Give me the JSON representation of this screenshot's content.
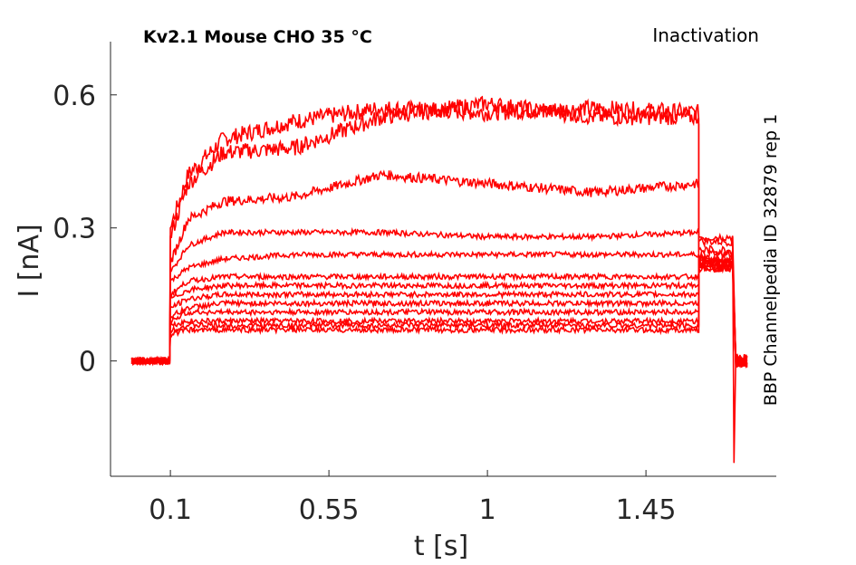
{
  "chart_data": {
    "type": "line",
    "title_left": "Kv2.1  Mouse  CHO  35 °C",
    "title_right": "Inactivation",
    "side_label": "BBP Channelpedia ID 32879 rep 1",
    "xlabel": "t [s]",
    "ylabel": "I [nA]",
    "xlim": [
      -0.07,
      1.82
    ],
    "ylim": [
      -0.26,
      0.72
    ],
    "xticks": [
      0.1,
      0.55,
      1,
      1.45
    ],
    "xtick_labels": [
      "0.1",
      "0.55",
      "1",
      "1.45"
    ],
    "yticks": [
      0,
      0.3,
      0.6
    ],
    "ytick_labels": [
      "0",
      "0.3",
      "0.6"
    ],
    "line_color": "#ff0000",
    "step_on_s": 0.1,
    "step_off_s": 1.6,
    "end_s": 1.74,
    "series": [
      {
        "name": "sweep 1",
        "x": [
          0.1,
          0.15,
          0.25,
          0.45,
          0.7,
          1.0,
          1.3,
          1.6
        ],
        "y": [
          0.3,
          0.42,
          0.5,
          0.54,
          0.57,
          0.56,
          0.57,
          0.56
        ]
      },
      {
        "name": "sweep 2",
        "x": [
          0.1,
          0.15,
          0.25,
          0.45,
          0.7,
          1.0,
          1.3,
          1.6
        ],
        "y": [
          0.28,
          0.4,
          0.47,
          0.48,
          0.55,
          0.58,
          0.55,
          0.55
        ]
      },
      {
        "name": "sweep 3",
        "x": [
          0.1,
          0.15,
          0.25,
          0.45,
          0.7,
          1.0,
          1.3,
          1.6
        ],
        "y": [
          0.22,
          0.32,
          0.36,
          0.37,
          0.42,
          0.4,
          0.38,
          0.4
        ]
      },
      {
        "name": "sweep 4",
        "x": [
          0.1,
          0.15,
          0.25,
          0.45,
          0.7,
          1.0,
          1.3,
          1.6
        ],
        "y": [
          0.2,
          0.26,
          0.29,
          0.29,
          0.29,
          0.28,
          0.28,
          0.29
        ]
      },
      {
        "name": "sweep 5",
        "x": [
          0.1,
          0.15,
          0.25,
          0.45,
          0.7,
          1.0,
          1.3,
          1.6
        ],
        "y": [
          0.18,
          0.21,
          0.23,
          0.24,
          0.24,
          0.24,
          0.24,
          0.24
        ]
      },
      {
        "name": "sweep 6",
        "x": [
          0.1,
          0.15,
          0.25,
          0.45,
          0.7,
          1.0,
          1.3,
          1.6
        ],
        "y": [
          0.15,
          0.18,
          0.19,
          0.19,
          0.19,
          0.19,
          0.19,
          0.19
        ]
      },
      {
        "name": "sweep 7",
        "x": [
          0.1,
          0.15,
          0.25,
          0.45,
          0.7,
          1.0,
          1.3,
          1.6
        ],
        "y": [
          0.14,
          0.16,
          0.17,
          0.17,
          0.17,
          0.17,
          0.17,
          0.17
        ]
      },
      {
        "name": "sweep 8",
        "x": [
          0.1,
          0.15,
          0.25,
          0.45,
          0.7,
          1.0,
          1.3,
          1.6
        ],
        "y": [
          0.12,
          0.14,
          0.15,
          0.15,
          0.15,
          0.15,
          0.15,
          0.15
        ]
      },
      {
        "name": "sweep 9",
        "x": [
          0.1,
          0.15,
          0.25,
          0.45,
          0.7,
          1.0,
          1.3,
          1.6
        ],
        "y": [
          0.1,
          0.12,
          0.13,
          0.13,
          0.13,
          0.13,
          0.13,
          0.13
        ]
      },
      {
        "name": "sweep 10",
        "x": [
          0.1,
          0.15,
          0.25,
          0.45,
          0.7,
          1.0,
          1.3,
          1.6
        ],
        "y": [
          0.09,
          0.11,
          0.11,
          0.11,
          0.11,
          0.11,
          0.11,
          0.11
        ]
      },
      {
        "name": "sweep 11",
        "x": [
          0.1,
          0.15,
          0.25,
          0.45,
          0.7,
          1.0,
          1.3,
          1.6
        ],
        "y": [
          0.08,
          0.09,
          0.09,
          0.09,
          0.09,
          0.09,
          0.09,
          0.09
        ]
      },
      {
        "name": "sweep 12",
        "x": [
          0.1,
          0.15,
          0.25,
          0.45,
          0.7,
          1.0,
          1.3,
          1.6
        ],
        "y": [
          0.07,
          0.08,
          0.08,
          0.08,
          0.08,
          0.08,
          0.08,
          0.08
        ]
      },
      {
        "name": "sweep 13",
        "x": [
          0.1,
          0.15,
          0.25,
          0.45,
          0.7,
          1.0,
          1.3,
          1.6
        ],
        "y": [
          0.06,
          0.07,
          0.07,
          0.07,
          0.07,
          0.07,
          0.07,
          0.07
        ]
      }
    ],
    "tail_y": [
      0.28,
      0.27,
      0.25,
      0.23,
      0.22,
      0.24,
      0.23,
      0.22,
      0.21,
      0.22,
      0.21,
      0.22,
      0.21
    ],
    "tail_spike_min": -0.23,
    "grid": false,
    "legend": "none"
  }
}
